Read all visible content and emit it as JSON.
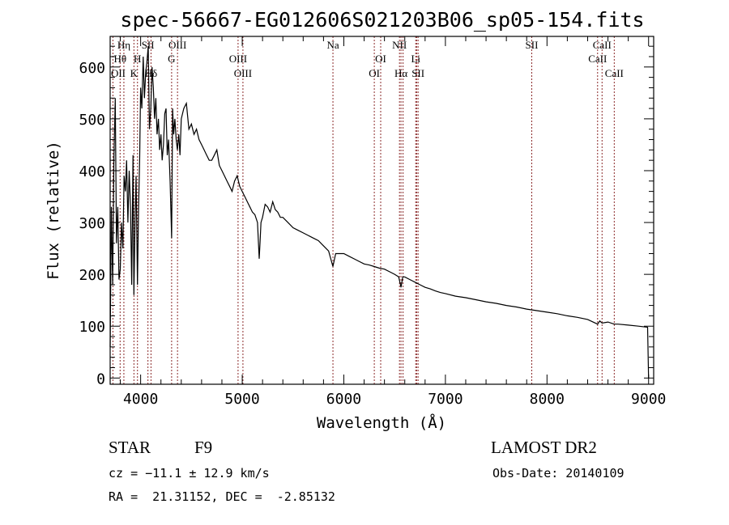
{
  "chart_data": {
    "type": "line",
    "title": "spec-56667-EG012606S021203B06_sp05-154.fits",
    "xlabel": "Wavelength (Å)",
    "ylabel": "Flux (relative)",
    "xlim": [
      3700,
      9050
    ],
    "ylim": [
      -12,
      659
    ],
    "xticks": [
      4000,
      5000,
      6000,
      7000,
      8000,
      9000
    ],
    "yticks": [
      0,
      100,
      200,
      300,
      400,
      500,
      600
    ],
    "grid": false,
    "series": [
      {
        "name": "spectrum",
        "x": [
          3700,
          3712,
          3725,
          3737,
          3750,
          3762,
          3775,
          3787,
          3800,
          3812,
          3825,
          3837,
          3850,
          3862,
          3875,
          3887,
          3900,
          3912,
          3925,
          3934,
          3945,
          3955,
          3969,
          3980,
          3990,
          4000,
          4012,
          4025,
          4037,
          4050,
          4062,
          4075,
          4087,
          4100,
          4112,
          4125,
          4137,
          4150,
          4162,
          4175,
          4187,
          4200,
          4212,
          4225,
          4237,
          4250,
          4262,
          4275,
          4290,
          4305,
          4315,
          4325,
          4337,
          4350,
          4362,
          4375,
          4387,
          4400,
          4425,
          4450,
          4475,
          4500,
          4525,
          4550,
          4575,
          4600,
          4625,
          4650,
          4675,
          4700,
          4725,
          4750,
          4775,
          4800,
          4825,
          4850,
          4875,
          4900,
          4925,
          4950,
          4975,
          5000,
          5025,
          5050,
          5075,
          5100,
          5125,
          5150,
          5167,
          5175,
          5185,
          5200,
          5225,
          5250,
          5275,
          5300,
          5325,
          5350,
          5375,
          5400,
          5450,
          5500,
          5550,
          5600,
          5650,
          5700,
          5750,
          5800,
          5850,
          5893,
          5920,
          6000,
          6050,
          6100,
          6150,
          6200,
          6250,
          6300,
          6350,
          6400,
          6450,
          6500,
          6540,
          6563,
          6580,
          6600,
          6650,
          6700,
          6750,
          6800,
          6850,
          6900,
          6950,
          7000,
          7100,
          7200,
          7300,
          7400,
          7500,
          7600,
          7700,
          7800,
          7900,
          8000,
          8100,
          8200,
          8300,
          8400,
          8498,
          8520,
          8542,
          8600,
          8662,
          8700,
          8800,
          8900,
          8990,
          9000
        ],
        "y": [
          60,
          330,
          180,
          420,
          540,
          260,
          330,
          190,
          210,
          300,
          250,
          390,
          360,
          420,
          300,
          400,
          330,
          180,
          430,
          160,
          300,
          390,
          180,
          330,
          420,
          560,
          520,
          620,
          540,
          590,
          610,
          640,
          480,
          520,
          600,
          560,
          500,
          540,
          470,
          500,
          440,
          470,
          420,
          450,
          510,
          520,
          430,
          460,
          380,
          270,
          520,
          470,
          500,
          460,
          440,
          470,
          430,
          500,
          520,
          530,
          480,
          490,
          470,
          480,
          460,
          450,
          440,
          430,
          420,
          420,
          430,
          440,
          410,
          400,
          390,
          380,
          370,
          360,
          380,
          390,
          370,
          360,
          350,
          340,
          330,
          320,
          315,
          300,
          230,
          260,
          300,
          310,
          335,
          330,
          320,
          340,
          325,
          320,
          310,
          310,
          300,
          290,
          285,
          280,
          275,
          270,
          265,
          255,
          245,
          215,
          240,
          240,
          235,
          230,
          225,
          220,
          218,
          215,
          212,
          210,
          205,
          200,
          195,
          175,
          195,
          195,
          190,
          185,
          180,
          175,
          172,
          168,
          165,
          163,
          158,
          155,
          151,
          147,
          144,
          140,
          137,
          133,
          130,
          127,
          124,
          120,
          117,
          113,
          104,
          110,
          106,
          108,
          104,
          104,
          102,
          100,
          98,
          0
        ]
      }
    ],
    "line_markers": [
      {
        "label": "OII",
        "wl": 3727
      },
      {
        "label": "Hθ",
        "wl": 3798
      },
      {
        "label": "Hη",
        "wl": 3835
      },
      {
        "label": "K",
        "wl": 3934
      },
      {
        "label": "H",
        "wl": 3969
      },
      {
        "label": "SII",
        "wl": 4072
      },
      {
        "label": "Hδ",
        "wl": 4102
      },
      {
        "label": "G",
        "wl": 4305
      },
      {
        "label": "OIII",
        "wl": 4363
      },
      {
        "label": "OIII",
        "wl": 4959
      },
      {
        "label": "OIII",
        "wl": 5007
      },
      {
        "label": "Na",
        "wl": 5893
      },
      {
        "label": "OI",
        "wl": 6300
      },
      {
        "label": "OI",
        "wl": 6363
      },
      {
        "label": "NII",
        "wl": 6548
      },
      {
        "label": "Hα",
        "wl": 6563
      },
      {
        "label": "NII",
        "wl": 6583
      },
      {
        "label": "Li",
        "wl": 6708
      },
      {
        "label": "SII",
        "wl": 6717
      },
      {
        "label": "SII",
        "wl": 6731
      },
      {
        "label": "SII",
        "wl": 7850
      },
      {
        "label": "CaII",
        "wl": 8498
      },
      {
        "label": "CaII",
        "wl": 8542
      },
      {
        "label": "CaII",
        "wl": 8662
      }
    ]
  },
  "info": {
    "object_class": "STAR",
    "subclass": "F9",
    "survey": "LAMOST DR2",
    "redshift_line": "cz = −11.1 ± 12.9 km/s",
    "obs_date_line": "Obs-Date: 20140109",
    "coords_line": "RA =  21.31152, DEC =  -2.85132"
  },
  "colors": {
    "spectrum": "#000000",
    "markers": "#8b2a2a",
    "text": "#000000"
  }
}
